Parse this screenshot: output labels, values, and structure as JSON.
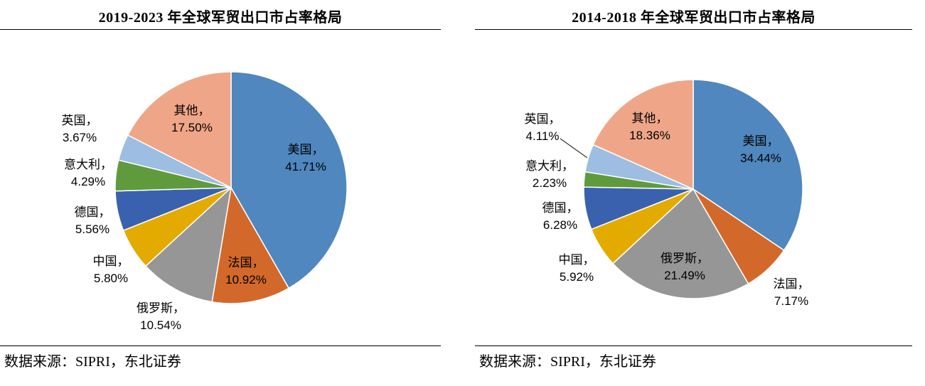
{
  "charts": [
    {
      "title": "2019-2023 年全球军贸出口市占率格局",
      "source": "数据来源：SIPRI，东北证券"
    },
    {
      "title": "2014-2018 年全球军贸出口市占率格局",
      "source": "数据来源：SIPRI，东北证券"
    }
  ],
  "chart_data": [
    {
      "type": "pie",
      "title": "2019-2023 年全球军贸出口市占率格局",
      "slices": [
        {
          "name": "美国",
          "value": 41.71,
          "label": "41.71%",
          "color": "#4F87BE"
        },
        {
          "name": "法国",
          "value": 10.92,
          "label": "10.92%",
          "color": "#D2692A"
        },
        {
          "name": "俄罗斯",
          "value": 10.54,
          "label": "10.54%",
          "color": "#969696"
        },
        {
          "name": "中国",
          "value": 5.8,
          "label": "5.80%",
          "color": "#E3AB00"
        },
        {
          "name": "德国",
          "value": 5.56,
          "label": "5.56%",
          "color": "#3A61AE"
        },
        {
          "name": "意大利",
          "value": 4.29,
          "label": "4.29%",
          "color": "#5F9B3C"
        },
        {
          "name": "英国",
          "value": 3.67,
          "label": "3.67%",
          "color": "#9DBDE2"
        },
        {
          "name": "其他",
          "value": 17.5,
          "label": "17.50%",
          "color": "#EFA688"
        }
      ]
    },
    {
      "type": "pie",
      "title": "2014-2018 年全球军贸出口市占率格局",
      "slices": [
        {
          "name": "美国",
          "value": 34.44,
          "label": "34.44%",
          "color": "#4F87BE"
        },
        {
          "name": "法国",
          "value": 7.17,
          "label": "7.17%",
          "color": "#D2692A"
        },
        {
          "name": "俄罗斯",
          "value": 21.49,
          "label": "21.49%",
          "color": "#969696"
        },
        {
          "name": "中国",
          "value": 5.92,
          "label": "5.92%",
          "color": "#E3AB00"
        },
        {
          "name": "德国",
          "value": 6.28,
          "label": "6.28%",
          "color": "#3A61AE"
        },
        {
          "name": "意大利",
          "value": 2.23,
          "label": "2.23%",
          "color": "#5F9B3C"
        },
        {
          "name": "英国",
          "value": 4.11,
          "label": "4.11%",
          "color": "#9DBDE2"
        },
        {
          "name": "其他",
          "value": 18.36,
          "label": "18.36%",
          "color": "#EFA688"
        }
      ]
    }
  ]
}
